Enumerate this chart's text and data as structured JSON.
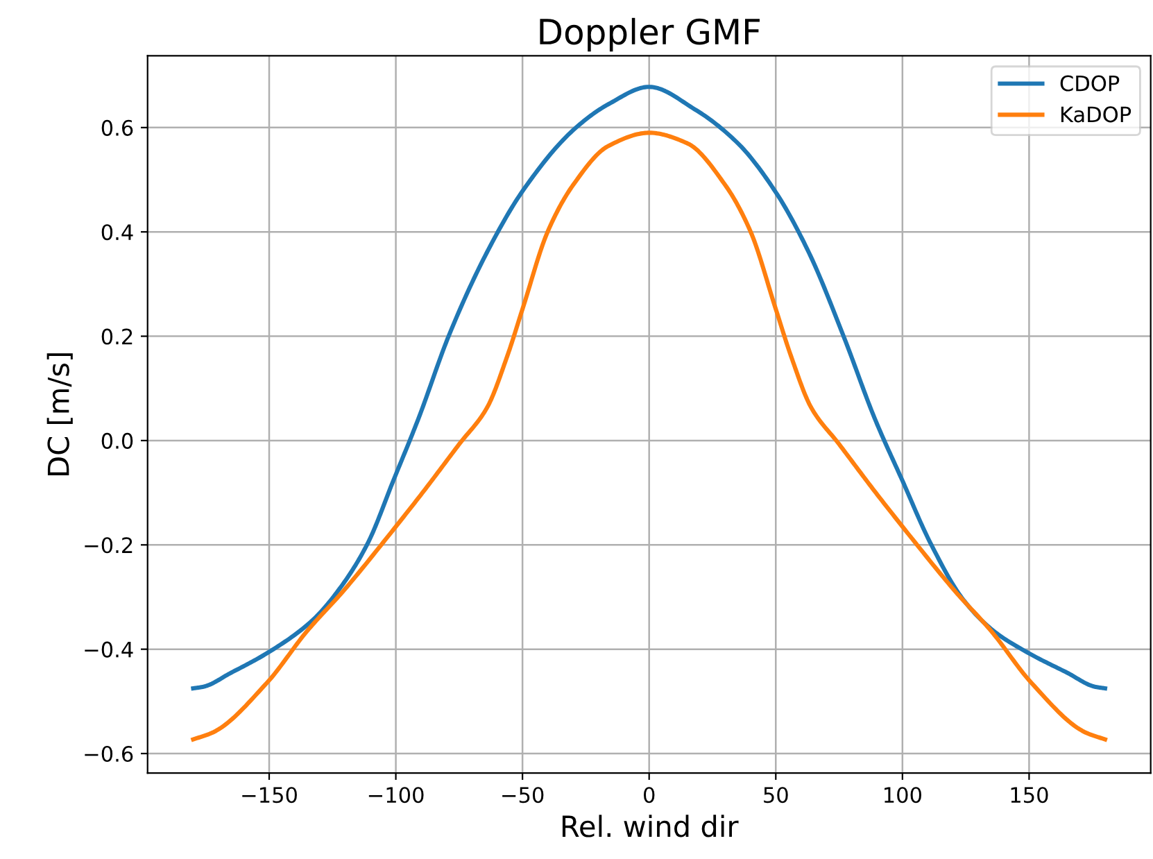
{
  "chart_data": {
    "type": "line",
    "title": "Doppler GMF",
    "xlabel": "Rel. wind dir",
    "ylabel": "DC [m/s]",
    "xlim": [
      -198,
      198
    ],
    "xticks": [
      -150,
      -100,
      -50,
      0,
      50,
      100,
      150
    ],
    "ylim": [
      -0.6375,
      0.7375
    ],
    "yticks": [
      -0.6,
      -0.4,
      -0.2,
      {
        "value": 0,
        "label": "0.0"
      },
      0.2,
      0.4,
      0.6
    ],
    "grid": true,
    "legend": "top right",
    "marker": "none",
    "line_style": "solid",
    "series": [
      {
        "name": "CDOP",
        "color": "#1f77b4",
        "x": [
          -180,
          -176,
          -165,
          -151,
          -133,
          -121,
          -111,
          -101,
          -91,
          -79,
          -64,
          -50,
          -30,
          -16,
          0,
          18,
          35,
          50,
          63,
          77,
          89,
          100,
          111,
          124,
          136,
          150,
          165,
          176,
          180
        ],
        "values": [
          -0.475,
          -0.472,
          -0.445,
          -0.408,
          -0.345,
          -0.276,
          -0.196,
          -0.077,
          0.043,
          0.202,
          0.361,
          0.478,
          0.595,
          0.645,
          0.678,
          0.635,
          0.57,
          0.476,
          0.361,
          0.197,
          0.043,
          -0.077,
          -0.196,
          -0.305,
          -0.365,
          -0.408,
          -0.445,
          -0.472,
          -0.475
        ]
      },
      {
        "name": "KaDOP",
        "color": "#ff7f0e",
        "x": [
          -180,
          -172,
          -151,
          -135,
          -121,
          -101,
          -89,
          -75,
          -64,
          -56,
          -50,
          -40,
          -30,
          -16,
          0,
          15,
          30,
          40,
          50,
          56,
          64,
          75,
          89,
          101,
          121,
          135,
          151,
          172,
          180
        ],
        "values": [
          -0.573,
          -0.559,
          -0.465,
          -0.365,
          -0.29,
          -0.171,
          -0.097,
          -0.007,
          0.063,
          0.162,
          0.252,
          0.401,
          0.49,
          0.565,
          0.59,
          0.57,
          0.49,
          0.401,
          0.252,
          0.162,
          0.063,
          -0.007,
          -0.097,
          -0.171,
          -0.29,
          -0.365,
          -0.465,
          -0.559,
          -0.573
        ]
      }
    ]
  }
}
